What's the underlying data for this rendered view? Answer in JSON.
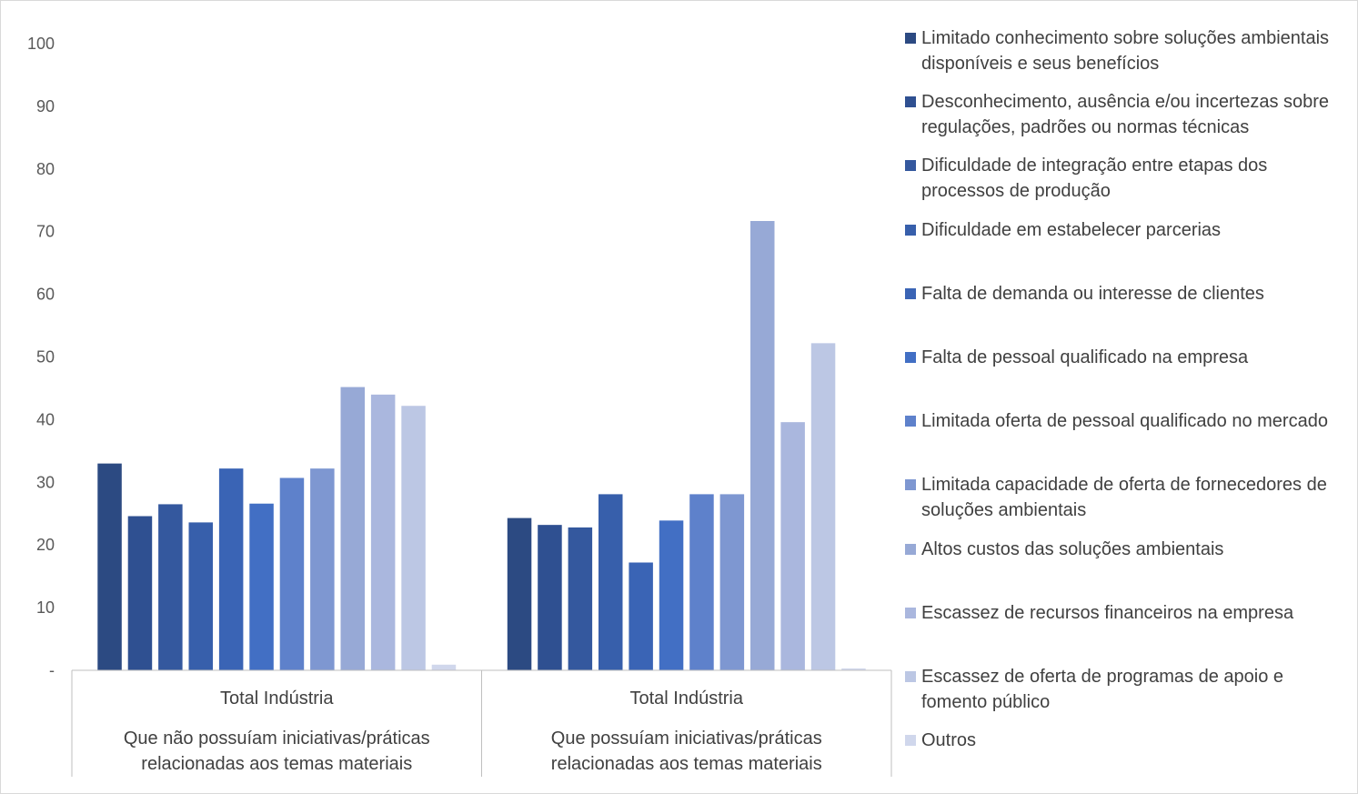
{
  "chart_data": {
    "type": "bar",
    "title": "",
    "xlabel": "",
    "ylabel": "",
    "ylim": [
      0,
      100
    ],
    "yticks": [
      "-",
      "10",
      "20",
      "30",
      "40",
      "50",
      "60",
      "70",
      "80",
      "90",
      "100"
    ],
    "grid": false,
    "legend_position": "right",
    "categories": [
      {
        "group": "Total Indústria",
        "subgroup": "Que não possuíam iniciativas/práticas relacionadas aos temas materiais"
      },
      {
        "group": "Total Indústria",
        "subgroup": "Que possuíam iniciativas/práticas relacionadas aos temas materiais"
      }
    ],
    "series": [
      {
        "name": "Limitado conhecimento sobre soluções ambientais disponíveis e seus benefícios",
        "color": "#2c4a82",
        "values": [
          33.0,
          24.3
        ]
      },
      {
        "name": "Desconhecimento, ausência e/ou incertezas sobre regulações, padrões ou normas técnicas",
        "color": "#2f5091",
        "values": [
          24.6,
          23.2
        ]
      },
      {
        "name": "Dificuldade de integração entre etapas dos processos de produção",
        "color": "#34589e",
        "values": [
          26.5,
          22.8
        ]
      },
      {
        "name": "Dificuldade em estabelecer parcerias",
        "color": "#375fab",
        "values": [
          23.6,
          28.1
        ]
      },
      {
        "name": "Falta de demanda ou interesse de clientes",
        "color": "#3a64b5",
        "values": [
          32.2,
          17.2
        ]
      },
      {
        "name": "Falta de pessoal qualificado na empresa",
        "color": "#426fc4",
        "values": [
          26.6,
          23.9
        ]
      },
      {
        "name": "Limitada oferta de pessoal qualificado no mercado",
        "color": "#5e81cb",
        "values": [
          30.7,
          28.1
        ]
      },
      {
        "name": "Limitada capacidade de oferta de fornecedores de soluções ambientais",
        "color": "#7e97d1",
        "values": [
          32.2,
          28.1
        ]
      },
      {
        "name": "Altos custos das soluções ambientais",
        "color": "#97a9d6",
        "values": [
          45.2,
          71.7
        ]
      },
      {
        "name": "Escassez de recursos financeiros na empresa",
        "color": "#aab7de",
        "values": [
          44.0,
          39.6
        ]
      },
      {
        "name": "Escassez de oferta de programas de apoio e fomento público",
        "color": "#bcc7e4",
        "values": [
          42.2,
          52.2
        ]
      },
      {
        "name": "Outros",
        "color": "#d0d7ec",
        "values": [
          0.9,
          0.3
        ]
      }
    ]
  }
}
